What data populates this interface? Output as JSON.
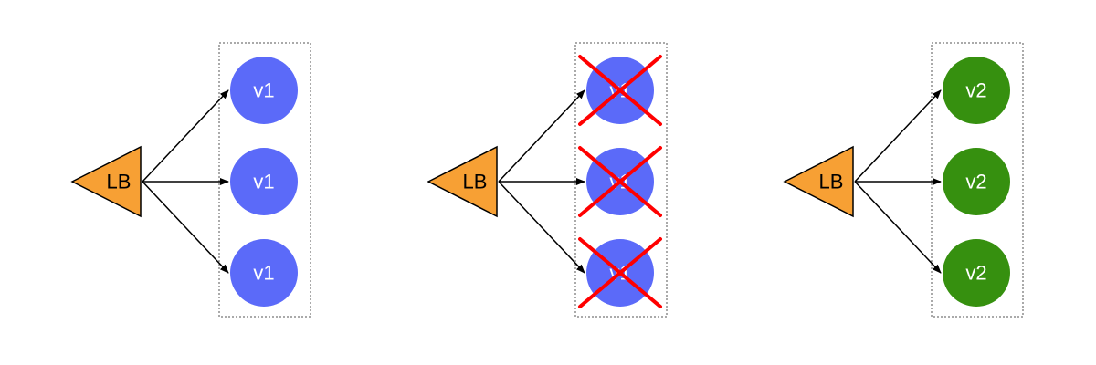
{
  "colors": {
    "lb_fill": "#F7A034",
    "v1_fill": "#5B6AF9",
    "v2_fill": "#36900F",
    "cross": "#FF0000"
  },
  "panels": [
    {
      "lb_label": "LB",
      "nodes": [
        {
          "label": "v1",
          "version": "v1",
          "crossed": false
        },
        {
          "label": "v1",
          "version": "v1",
          "crossed": false
        },
        {
          "label": "v1",
          "version": "v1",
          "crossed": false
        }
      ]
    },
    {
      "lb_label": "LB",
      "nodes": [
        {
          "label": "v1",
          "version": "v1",
          "crossed": true
        },
        {
          "label": "v1",
          "version": "v1",
          "crossed": true
        },
        {
          "label": "v1",
          "version": "v1",
          "crossed": true
        }
      ]
    },
    {
      "lb_label": "LB",
      "nodes": [
        {
          "label": "v2",
          "version": "v2",
          "crossed": false
        },
        {
          "label": "v2",
          "version": "v2",
          "crossed": false
        },
        {
          "label": "v2",
          "version": "v2",
          "crossed": false
        }
      ]
    }
  ]
}
